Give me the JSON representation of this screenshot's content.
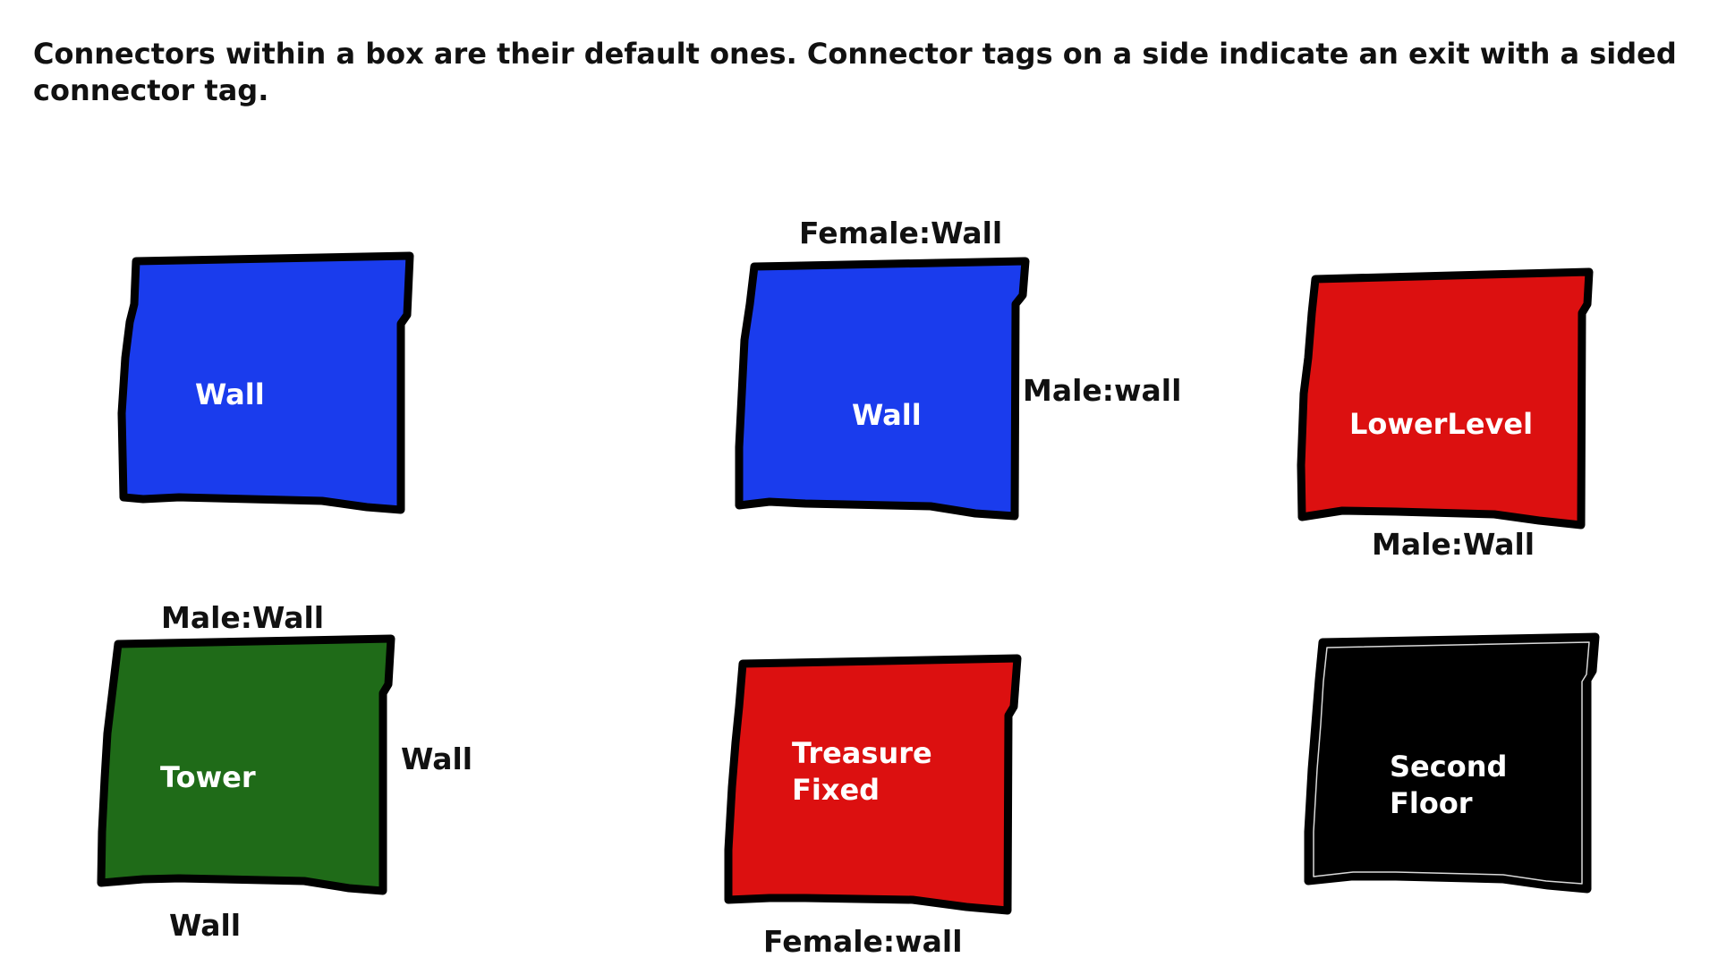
{
  "caption": "Connectors within a box are their default ones. Connector tags on a side indicate an exit with a sided connector tag.",
  "colors": {
    "blue": "#1a3ced",
    "red": "#dc1010",
    "green": "#1f6b18",
    "black": "#000000",
    "outline": "#000000",
    "box_text": "#ffffff",
    "tag_text": "#111111"
  },
  "boxes": [
    {
      "id": "box-1",
      "fill": "blue",
      "label": [
        "Wall"
      ],
      "tags": {
        "top": "",
        "right": "",
        "bottom": ""
      }
    },
    {
      "id": "box-2",
      "fill": "blue",
      "label": [
        "Wall"
      ],
      "tags": {
        "top": "Female:Wall",
        "right": "Male:wall",
        "bottom": ""
      }
    },
    {
      "id": "box-3",
      "fill": "red",
      "label": [
        "LowerLevel"
      ],
      "tags": {
        "top": "",
        "right": "",
        "bottom": "Male:Wall"
      }
    },
    {
      "id": "box-4",
      "fill": "green",
      "label": [
        "Tower"
      ],
      "tags": {
        "top": "Male:Wall",
        "right": "Wall",
        "bottom": "Wall"
      }
    },
    {
      "id": "box-5",
      "fill": "red",
      "label": [
        "Treasure",
        "Fixed"
      ],
      "tags": {
        "top": "",
        "right": "",
        "bottom": "Female:wall"
      }
    },
    {
      "id": "box-6",
      "fill": "black",
      "label": [
        "Second",
        "Floor"
      ],
      "tags": {
        "top": "",
        "right": "",
        "bottom": ""
      }
    }
  ]
}
